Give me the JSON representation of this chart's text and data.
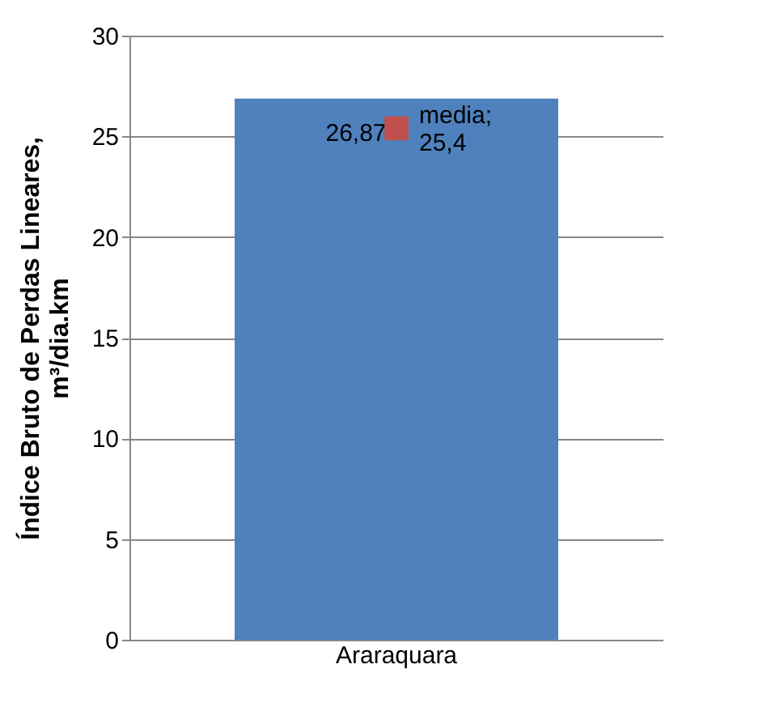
{
  "chart_data": {
    "type": "bar",
    "categories": [
      "Araraquara"
    ],
    "ylabel": "Índice Bruto de Perdas Lineares, m³/dia.km",
    "ylim": [
      0,
      30
    ],
    "yticks": [
      0,
      5,
      10,
      15,
      20,
      25,
      30
    ],
    "grid": "y",
    "series": [
      {
        "color": "#4f81bd",
        "values": [
          26.87
        ],
        "value_labels": [
          "26,87"
        ]
      },
      {
        "type": "scatter",
        "name": "media;",
        "color": "#c0504d",
        "marker": "square",
        "values": [
          25.4
        ],
        "value_labels": [
          "25,4"
        ]
      }
    ]
  }
}
